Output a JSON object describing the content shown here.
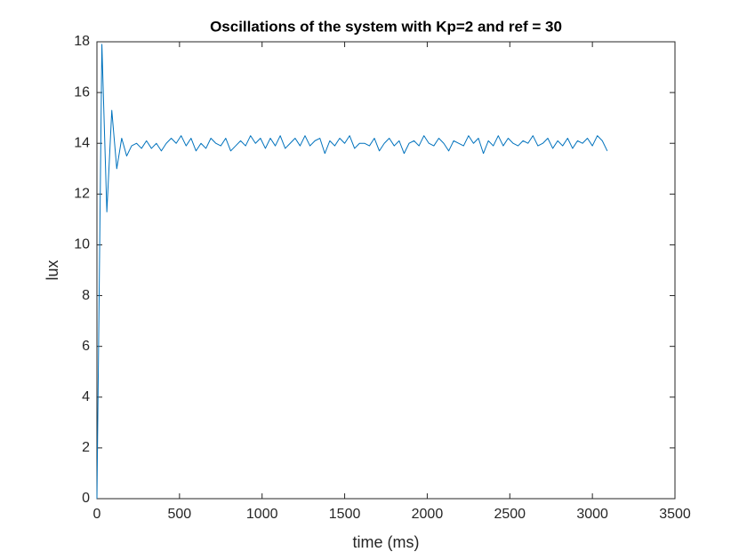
{
  "chart_data": {
    "type": "line",
    "title": "Oscillations of the system with Kp=2 and ref = 30",
    "x_label": "time (ms)",
    "y_label": "lux",
    "x": [
      0,
      30,
      60,
      90,
      120,
      150,
      180,
      210,
      240,
      270,
      300,
      330,
      360,
      390,
      420,
      450,
      480,
      510,
      540,
      570,
      600,
      630,
      660,
      690,
      720,
      750,
      780,
      810,
      840,
      870,
      900,
      930,
      960,
      990,
      1020,
      1050,
      1080,
      1110,
      1140,
      1170,
      1200,
      1230,
      1260,
      1290,
      1320,
      1350,
      1380,
      1410,
      1440,
      1470,
      1500,
      1530,
      1560,
      1590,
      1620,
      1650,
      1680,
      1710,
      1740,
      1770,
      1800,
      1830,
      1860,
      1890,
      1920,
      1950,
      1980,
      2010,
      2040,
      2070,
      2100,
      2130,
      2160,
      2190,
      2220,
      2250,
      2280,
      2310,
      2340,
      2370,
      2400,
      2430,
      2460,
      2490,
      2520,
      2550,
      2580,
      2610,
      2640,
      2670,
      2700,
      2730,
      2760,
      2790,
      2820,
      2850,
      2880,
      2910,
      2940,
      2970,
      3000,
      3030,
      3060,
      3090
    ],
    "series": [
      {
        "color": "#0072bd",
        "values": [
          0,
          17.9,
          11.3,
          15.3,
          13.0,
          14.2,
          13.5,
          13.9,
          14.0,
          13.8,
          14.1,
          13.8,
          14.0,
          13.7,
          14.0,
          14.2,
          14.0,
          14.3,
          13.9,
          14.2,
          13.7,
          14.0,
          13.8,
          14.2,
          14.0,
          13.9,
          14.2,
          13.7,
          13.9,
          14.1,
          13.9,
          14.3,
          14.0,
          14.2,
          13.8,
          14.2,
          13.9,
          14.3,
          13.8,
          14.0,
          14.2,
          13.9,
          14.3,
          13.9,
          14.1,
          14.2,
          13.6,
          14.1,
          13.9,
          14.2,
          14.0,
          14.3,
          13.8,
          14.0,
          14.0,
          13.9,
          14.2,
          13.7,
          14.0,
          14.2,
          13.9,
          14.1,
          13.6,
          14.0,
          14.1,
          13.9,
          14.3,
          14.0,
          13.9,
          14.2,
          14.0,
          13.7,
          14.1,
          14.0,
          13.9,
          14.3,
          14.0,
          14.2,
          13.6,
          14.1,
          13.9,
          14.3,
          13.9,
          14.2,
          14.0,
          13.9,
          14.1,
          14.0,
          14.3,
          13.9,
          14.0,
          14.2,
          13.8,
          14.1,
          13.9,
          14.2,
          13.8,
          14.1,
          14.0,
          14.2,
          13.9,
          14.3,
          14.1,
          13.7
        ]
      }
    ],
    "xlim": [
      0,
      3500
    ],
    "xticks": [
      0,
      500,
      1000,
      1500,
      2000,
      2500,
      3000,
      3500
    ],
    "ylim": [
      0,
      18
    ],
    "yticks": [
      0,
      2,
      4,
      6,
      8,
      10,
      12,
      14,
      16,
      18
    ],
    "grid": false
  }
}
